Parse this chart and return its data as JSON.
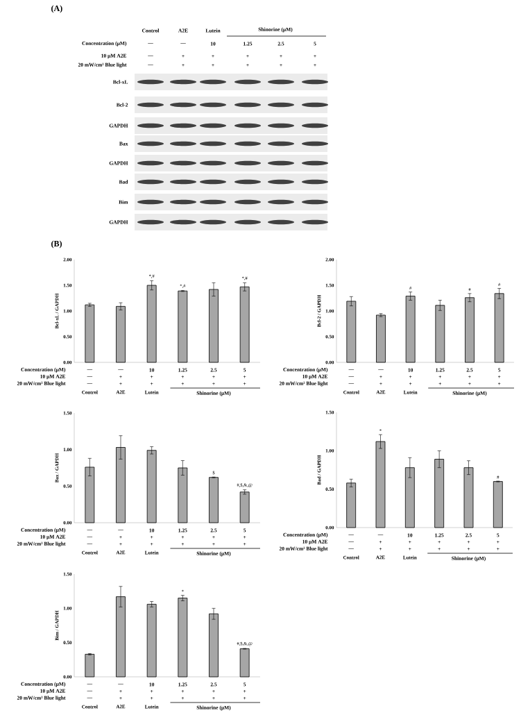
{
  "chart_data": [
    {
      "type": "other",
      "title": "(A)",
      "annotations": [
        "Control",
        "A2E",
        "Lutein",
        "Shinorine (μM)",
        "Concentration (μM)",
        "10 μM  A2E",
        "20 mW/cm² Blue light",
        "—",
        "—",
        "10",
        "1.25",
        "2.5",
        "5",
        "—",
        "+",
        "+",
        "+",
        "+",
        "+",
        "—",
        "+",
        "+",
        "+",
        "+",
        "+",
        "Bcl-xL",
        "Bcl-2",
        "GAPDH",
        "Bax",
        "GAPDH",
        "Bad",
        "Bim",
        "GAPDH"
      ]
    },
    {
      "type": "bar",
      "title": "(B)",
      "ylabel": "Bcl-xL / GAPDH",
      "categories": [
        "Control",
        "A2E",
        "Lutein",
        null,
        null,
        null
      ],
      "values": [
        1.12,
        1.09,
        1.5,
        1.39,
        1.42,
        1.47
      ],
      "errors": [
        0.03,
        0.07,
        0.09,
        0.01,
        0.13,
        0.08
      ],
      "value_labels": [
        null,
        null,
        "*,#",
        "*,#",
        null,
        "*,#"
      ],
      "color": "#a6a6a6",
      "ylim": [
        0,
        2
      ],
      "yticks": [
        {
          "value": 0,
          "label": "0.00"
        },
        {
          "value": 0.5,
          "label": "0.50"
        },
        {
          "value": 1,
          "label": "1.00"
        },
        {
          "value": 1.5,
          "label": "1.50"
        },
        {
          "value": 2,
          "label": "2.00"
        }
      ],
      "annotations": [
        "Concentration (μM)",
        "10 μM  A2E",
        "20 mW/cm² Blue light",
        "—",
        "—",
        "10",
        "1.25",
        "2.5",
        "5",
        "—",
        "+",
        "+",
        "+",
        "+",
        "+",
        "—",
        "+",
        "+",
        "+",
        "+",
        "+",
        "Shinorine (μM)"
      ]
    },
    {
      "type": "bar",
      "ylabel": "Bcl-2 / GAPDH",
      "categories": [
        "Control",
        "A2E",
        "Lutein",
        null,
        null,
        null
      ],
      "values": [
        1.19,
        0.92,
        1.29,
        1.11,
        1.26,
        1.34
      ],
      "errors": [
        0.09,
        0.03,
        0.08,
        0.1,
        0.08,
        0.1
      ],
      "value_labels": [
        null,
        null,
        "#",
        null,
        "#",
        "#"
      ],
      "color": "#a6a6a6",
      "ylim": [
        0,
        2
      ],
      "yticks": [
        {
          "value": 0,
          "label": "0.00"
        },
        {
          "value": 0.5,
          "label": "0.50"
        },
        {
          "value": 1,
          "label": "1.00"
        },
        {
          "value": 1.5,
          "label": "1.50"
        },
        {
          "value": 2,
          "label": "2.00"
        }
      ],
      "annotations": [
        "Concentration (μM)",
        "10 μM  A2E",
        "20 mW/cm² Blue light",
        "—",
        "—",
        "10",
        "1.25",
        "2.5",
        "5",
        "—",
        "+",
        "+",
        "+",
        "+",
        "+",
        "—",
        "+",
        "+",
        "+",
        "+",
        "+",
        "Shinorine (μM)"
      ]
    },
    {
      "type": "bar",
      "ylabel": "Bax / GAPDH",
      "categories": [
        "Control",
        "A2E",
        "Lutein",
        null,
        null,
        null
      ],
      "values": [
        0.76,
        1.03,
        0.99,
        0.75,
        0.62,
        0.42
      ],
      "errors": [
        0.12,
        0.16,
        0.05,
        0.1,
        0.005,
        0.03
      ],
      "value_labels": [
        null,
        null,
        null,
        null,
        "$",
        "#,$,&,@"
      ],
      "color": "#a6a6a6",
      "ylim": [
        0,
        1.5
      ],
      "yticks": [
        {
          "value": 0,
          "label": "0.00"
        },
        {
          "value": 0.5,
          "label": "0.50"
        },
        {
          "value": 1,
          "label": "1.00"
        },
        {
          "value": 1.5,
          "label": "1.50"
        }
      ],
      "annotations": [
        "Concentration (μM)",
        "10 μM  A2E",
        "20 mW/cm² Blue light",
        "—",
        "—",
        "10",
        "1.25",
        "2.5",
        "5",
        "—",
        "+",
        "+",
        "+",
        "+",
        "+",
        "—",
        "+",
        "+",
        "+",
        "+",
        "+",
        "Shinorine (μM)"
      ]
    },
    {
      "type": "bar",
      "ylabel": "Bad / GAPDH",
      "categories": [
        "Control",
        "A2E",
        "Lutein",
        null,
        null,
        null
      ],
      "values": [
        0.58,
        1.12,
        0.78,
        0.89,
        0.78,
        0.6
      ],
      "errors": [
        0.05,
        0.09,
        0.13,
        0.11,
        0.09,
        0.005
      ],
      "value_labels": [
        null,
        "*",
        null,
        null,
        null,
        "#"
      ],
      "color": "#a6a6a6",
      "ylim": [
        0,
        1.5
      ],
      "yticks": [
        {
          "value": 0,
          "label": "0.00"
        },
        {
          "value": 0.5,
          "label": "0.50"
        },
        {
          "value": 1,
          "label": "1.00"
        },
        {
          "value": 1.5,
          "label": "1.50"
        }
      ],
      "annotations": [
        "Concentration (μM)",
        "10 μM  A2E",
        "20 mW/cm² Blue light",
        "—",
        "—",
        "10",
        "1.25",
        "2.5",
        "5",
        "—",
        "+",
        "+",
        "+",
        "+",
        "+",
        "—",
        "+",
        "+",
        "+",
        "+",
        "+",
        "Shinorine (μM)"
      ]
    },
    {
      "type": "bar",
      "ylabel": "Bim / GAPDH",
      "categories": [
        "Control",
        "A2E",
        "Lutein",
        null,
        null,
        null
      ],
      "values": [
        0.33,
        1.17,
        1.06,
        1.15,
        0.92,
        0.41
      ],
      "errors": [
        0.01,
        0.15,
        0.04,
        0.04,
        0.08,
        0.005
      ],
      "value_labels": [
        null,
        null,
        null,
        "*",
        null,
        "#,$,&,@"
      ],
      "color": "#a6a6a6",
      "ylim": [
        0,
        1.5
      ],
      "yticks": [
        {
          "value": 0,
          "label": "0.00"
        },
        {
          "value": 0.5,
          "label": "0.50"
        },
        {
          "value": 1,
          "label": "1.00"
        },
        {
          "value": 1.5,
          "label": "1.50"
        }
      ],
      "annotations": [
        "Concentration (μM)",
        "10 μM  A2E",
        "20 mW/cm² Blue light",
        "—",
        "—",
        "10",
        "1.25",
        "2.5",
        "5",
        "—",
        "+",
        "+",
        "+",
        "+",
        "+",
        "—",
        "+",
        "+",
        "+",
        "+",
        "+",
        "Shinorine (μM)"
      ]
    }
  ]
}
